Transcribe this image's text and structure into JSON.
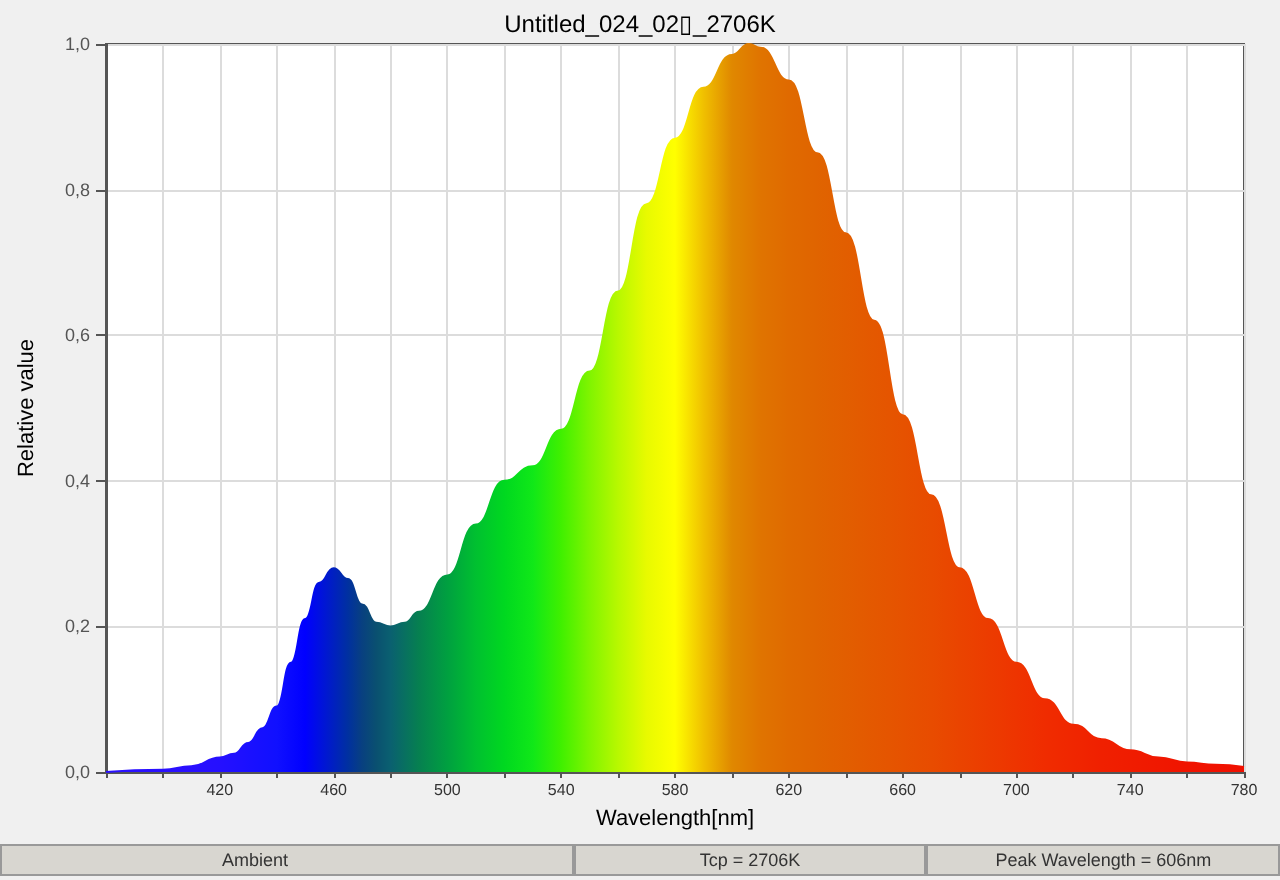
{
  "chart_data": {
    "type": "area",
    "title": "Untitled_024_02▯_2706K",
    "xlabel": "Wavelength[nm]",
    "ylabel": "Relative value",
    "annotations": [
      "Ambient",
      "Tcp = 2706K",
      "Peak Wavelength = 606nm"
    ],
    "xlim": [
      380,
      780
    ],
    "xticks": [
      {
        "value": 380,
        "label": null
      },
      {
        "value": 400,
        "label": null
      },
      420,
      {
        "value": 440,
        "label": null
      },
      460,
      {
        "value": 480,
        "label": null
      },
      500,
      {
        "value": 520,
        "label": null
      },
      540,
      {
        "value": 560,
        "label": null
      },
      580,
      {
        "value": 600,
        "label": null
      },
      620,
      {
        "value": 640,
        "label": null
      },
      660,
      {
        "value": 680,
        "label": null
      },
      700,
      {
        "value": 720,
        "label": null
      },
      740,
      {
        "value": 760,
        "label": null
      },
      780
    ],
    "ylim": [
      0,
      1
    ],
    "yticks": [
      {
        "value": 0,
        "label": "0,0"
      },
      {
        "value": 0.2,
        "label": "0,2"
      },
      {
        "value": 0.4,
        "label": "0,4"
      },
      {
        "value": 0.6,
        "label": "0,6"
      },
      {
        "value": 0.8,
        "label": "0,8"
      },
      {
        "value": 1,
        "label": "1,0"
      }
    ],
    "grid": true,
    "series": [
      {
        "x": [
          380,
          400,
          410,
          420,
          425,
          430,
          435,
          440,
          445,
          450,
          455,
          460,
          465,
          470,
          475,
          480,
          485,
          490,
          500,
          510,
          520,
          530,
          540,
          550,
          560,
          570,
          580,
          590,
          600,
          606,
          610,
          620,
          630,
          640,
          650,
          660,
          670,
          680,
          690,
          700,
          710,
          720,
          730,
          740,
          750,
          760,
          770,
          780
        ],
        "values": [
          0,
          0.003,
          0.008,
          0.02,
          0.025,
          0.04,
          0.06,
          0.09,
          0.15,
          0.21,
          0.26,
          0.28,
          0.265,
          0.23,
          0.205,
          0.2,
          0.205,
          0.22,
          0.27,
          0.34,
          0.4,
          0.42,
          0.47,
          0.55,
          0.66,
          0.78,
          0.87,
          0.94,
          0.985,
          1,
          0.995,
          0.95,
          0.85,
          0.74,
          0.62,
          0.49,
          0.38,
          0.28,
          0.21,
          0.15,
          0.1,
          0.065,
          0.045,
          0.03,
          0.02,
          0.013,
          0.01,
          0.007
        ],
        "colors": [
          "#2a10ff",
          "#2a10ff",
          "#2a10ff",
          "#2510ff",
          "#2010ff",
          "#1a10ff",
          "#1510ff",
          "#1010ff",
          "#0808ff",
          "#0000ff",
          "#0010e0",
          "#0020c0",
          "#0030a0",
          "#084080",
          "#0a5070",
          "#0a6070",
          "#087060",
          "#068050",
          "#00a040",
          "#00c030",
          "#00d820",
          "#10e818",
          "#40f000",
          "#80f400",
          "#b8f800",
          "#e8fa00",
          "#ffff00",
          "#f0c000",
          "#e08800",
          "#e07c00",
          "#e07400",
          "#e06a00",
          "#e06400",
          "#e25e00",
          "#e45800",
          "#e65200",
          "#e84c00",
          "#ea4400",
          "#ec3c00",
          "#ee3400",
          "#f02c00",
          "#f02600",
          "#f02000",
          "#f01c00",
          "#f01800",
          "#f01400",
          "#f01200",
          "#f01000"
        ]
      }
    ]
  }
}
